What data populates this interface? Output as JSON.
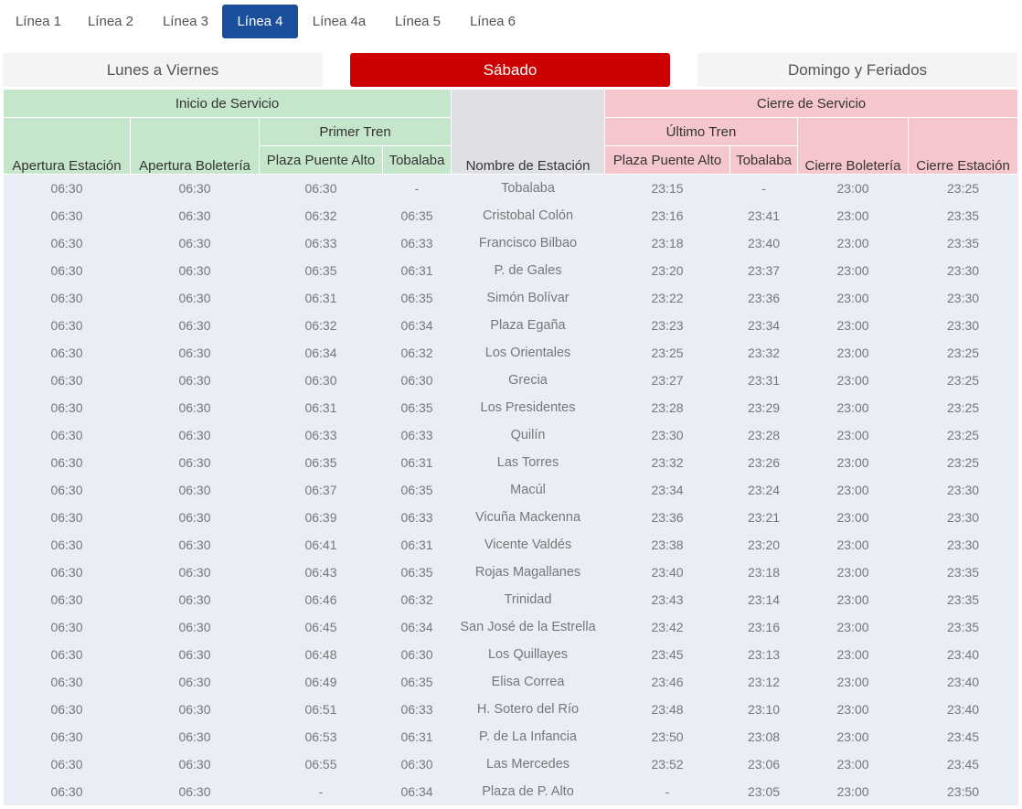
{
  "line_tabs": [
    {
      "label": "Línea 1",
      "active": false
    },
    {
      "label": "Línea 2",
      "active": false
    },
    {
      "label": "Línea 3",
      "active": false
    },
    {
      "label": "Línea 4",
      "active": true
    },
    {
      "label": "Línea 4a",
      "active": false
    },
    {
      "label": "Línea 5",
      "active": false
    },
    {
      "label": "Línea 6",
      "active": false
    }
  ],
  "day_tabs": [
    {
      "label": "Lunes a Viernes",
      "active": false
    },
    {
      "label": "Sábado",
      "active": true
    },
    {
      "label": "Domingo y Feriados",
      "active": false
    }
  ],
  "colors": {
    "active_line_tab": "#1b4f9c",
    "active_day_tab": "#cc0000",
    "start_header": "#c6e6cb",
    "station_header": "#dfe0e3",
    "end_header": "#f6c6cd",
    "row_bg": "#e9eef6"
  },
  "table": {
    "group_headers": {
      "start": "Inicio de Servicio",
      "end": "Cierre de Servicio"
    },
    "sub_headers": {
      "first_train": "Primer Tren",
      "last_train": "Último Tren"
    },
    "columns": [
      "Apertura Estación",
      "Apertura Boletería",
      "Plaza Puente Alto",
      "Tobalaba",
      "Nombre de Estación",
      "Plaza Puente Alto",
      "Tobalaba",
      "Cierre Boletería",
      "Cierre Estación"
    ],
    "rows": [
      [
        "06:30",
        "06:30",
        "06:30",
        "-",
        "Tobalaba",
        "23:15",
        "-",
        "23:00",
        "23:25"
      ],
      [
        "06:30",
        "06:30",
        "06:32",
        "06:35",
        "Cristobal Colón",
        "23:16",
        "23:41",
        "23:00",
        "23:35"
      ],
      [
        "06:30",
        "06:30",
        "06:33",
        "06:33",
        "Francisco Bilbao",
        "23:18",
        "23:40",
        "23:00",
        "23:35"
      ],
      [
        "06:30",
        "06:30",
        "06:35",
        "06:31",
        "P. de Gales",
        "23:20",
        "23:37",
        "23:00",
        "23:30"
      ],
      [
        "06:30",
        "06:30",
        "06:31",
        "06:35",
        "Simón Bolívar",
        "23:22",
        "23:36",
        "23:00",
        "23:30"
      ],
      [
        "06:30",
        "06:30",
        "06:32",
        "06:34",
        "Plaza Egaña",
        "23:23",
        "23:34",
        "23:00",
        "23:30"
      ],
      [
        "06:30",
        "06:30",
        "06:34",
        "06:32",
        "Los Orientales",
        "23:25",
        "23:32",
        "23:00",
        "23:25"
      ],
      [
        "06:30",
        "06:30",
        "06:30",
        "06:30",
        "Grecia",
        "23:27",
        "23:31",
        "23:00",
        "23:25"
      ],
      [
        "06:30",
        "06:30",
        "06:31",
        "06:35",
        "Los Presidentes",
        "23:28",
        "23:29",
        "23:00",
        "23:25"
      ],
      [
        "06:30",
        "06:30",
        "06:33",
        "06:33",
        "Quilín",
        "23:30",
        "23:28",
        "23:00",
        "23:25"
      ],
      [
        "06:30",
        "06:30",
        "06:35",
        "06:31",
        "Las Torres",
        "23:32",
        "23:26",
        "23:00",
        "23:25"
      ],
      [
        "06:30",
        "06:30",
        "06:37",
        "06:35",
        "Macúl",
        "23:34",
        "23:24",
        "23:00",
        "23:30"
      ],
      [
        "06:30",
        "06:30",
        "06:39",
        "06:33",
        "Vicuña Mackenna",
        "23:36",
        "23:21",
        "23:00",
        "23:30"
      ],
      [
        "06:30",
        "06:30",
        "06:41",
        "06:31",
        "Vicente Valdés",
        "23:38",
        "23:20",
        "23:00",
        "23:30"
      ],
      [
        "06:30",
        "06:30",
        "06:43",
        "06:35",
        "Rojas Magallanes",
        "23:40",
        "23:18",
        "23:00",
        "23:35"
      ],
      [
        "06:30",
        "06:30",
        "06:46",
        "06:32",
        "Trinidad",
        "23:43",
        "23:14",
        "23:00",
        "23:35"
      ],
      [
        "06:30",
        "06:30",
        "06:45",
        "06:34",
        "San José de la Estrella",
        "23:42",
        "23:16",
        "23:00",
        "23:35"
      ],
      [
        "06:30",
        "06:30",
        "06:48",
        "06:30",
        "Los Quillayes",
        "23:45",
        "23:13",
        "23:00",
        "23:40"
      ],
      [
        "06:30",
        "06:30",
        "06:49",
        "06:35",
        "Elisa Correa",
        "23:46",
        "23:12",
        "23:00",
        "23:40"
      ],
      [
        "06:30",
        "06:30",
        "06:51",
        "06:33",
        "H. Sotero del Río",
        "23:48",
        "23:10",
        "23:00",
        "23:40"
      ],
      [
        "06:30",
        "06:30",
        "06:53",
        "06:31",
        "P. de La Infancia",
        "23:50",
        "23:08",
        "23:00",
        "23:45"
      ],
      [
        "06:30",
        "06:30",
        "06:55",
        "06:30",
        "Las Mercedes",
        "23:52",
        "23:06",
        "23:00",
        "23:45"
      ],
      [
        "06:30",
        "06:30",
        "-",
        "06:34",
        "Plaza de P. Alto",
        "-",
        "23:05",
        "23:00",
        "23:50"
      ]
    ]
  }
}
